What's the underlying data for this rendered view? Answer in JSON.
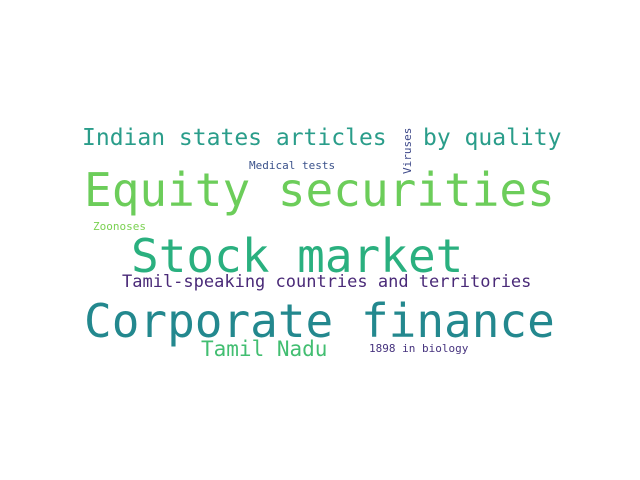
{
  "words": [
    {
      "text": "Equity securities",
      "color": "#6ccd5a"
    },
    {
      "text": "Stock market",
      "color": "#2ab07f"
    },
    {
      "text": "Corporate finance",
      "color": "#23888e"
    },
    {
      "text": "Indian states articles",
      "color": "#2a9d8a"
    },
    {
      "text": "by quality",
      "color": "#2a9d8a"
    },
    {
      "text": "Tamil-speaking countries and territories",
      "color": "#4a2a78"
    },
    {
      "text": "Tamil Nadu",
      "color": "#42be71"
    },
    {
      "text": "Medical tests",
      "color": "#3b528b"
    },
    {
      "text": "1898 in biology",
      "color": "#46337e"
    },
    {
      "text": "Zoonoses",
      "color": "#7ad151"
    },
    {
      "text": "Viruses",
      "color": "#3e4989"
    }
  ]
}
